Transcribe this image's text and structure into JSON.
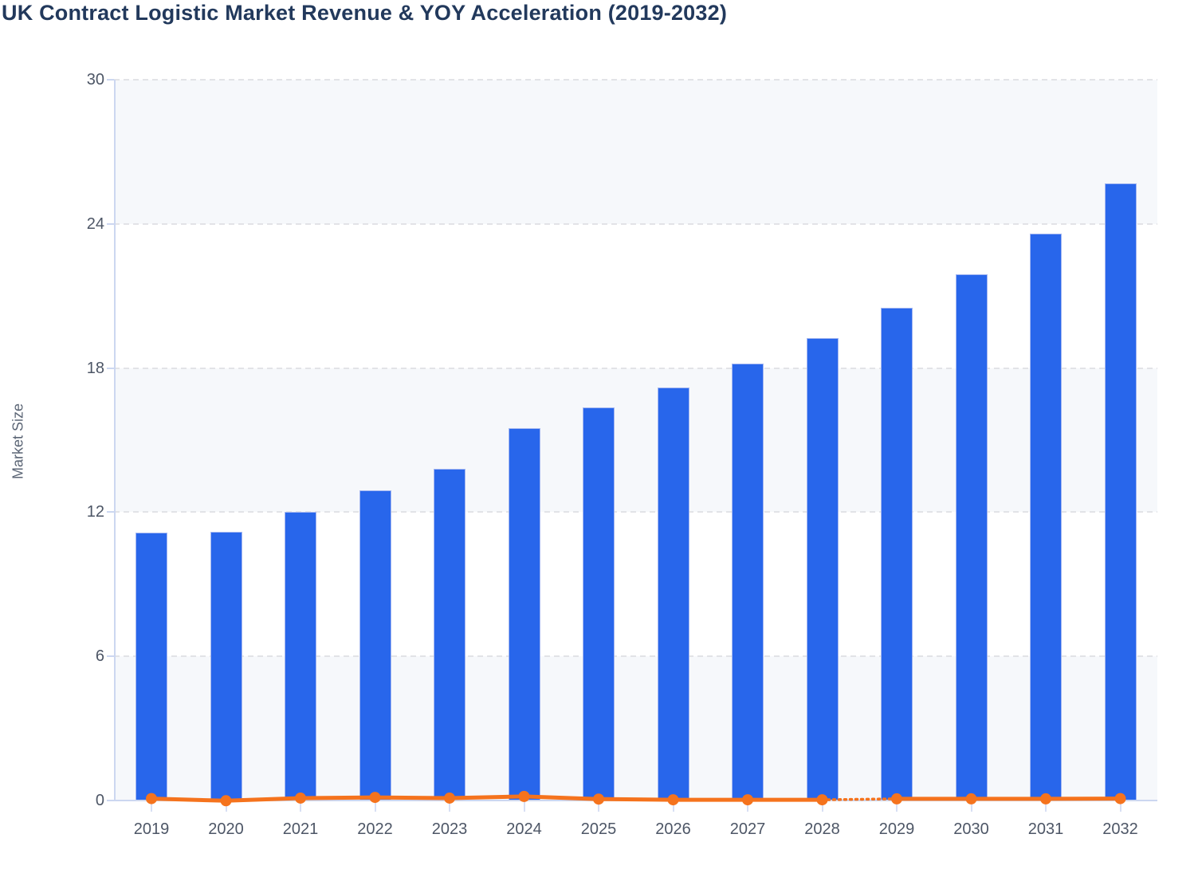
{
  "page": {
    "title": "UK Contract Logistic Market Revenue & YOY Acceleration (2019-2032)"
  },
  "chart_data": {
    "type": "bar",
    "title": "UK Contract Logistic Market Revenue & YOY Acceleration (2019-2032)",
    "categories": [
      "2019",
      "2020",
      "2021",
      "2022",
      "2023",
      "2024",
      "2025",
      "2026",
      "2027",
      "2028",
      "2029",
      "2030",
      "2031",
      "2032"
    ],
    "series": [
      {
        "name": "Market Revenue",
        "type": "bar",
        "values": [
          11.15,
          11.2,
          12.0,
          12.9,
          13.8,
          15.5,
          16.35,
          17.2,
          18.2,
          19.25,
          20.5,
          21.9,
          23.6,
          25.7
        ]
      },
      {
        "name": "YOY Acceleration",
        "type": "line",
        "values": [
          0.08,
          -0.01,
          0.1,
          0.13,
          0.1,
          0.17,
          0.06,
          0.03,
          0.03,
          0.03,
          0.07,
          0.07,
          0.07,
          0.08
        ],
        "dashed_segment_between": [
          "2028",
          "2029"
        ]
      }
    ],
    "xlabel": "",
    "ylabel": "Market Size",
    "ylim": [
      0,
      30
    ],
    "yticks": [
      0,
      6,
      12,
      18,
      24,
      30
    ],
    "grid": "horizontal-dashed",
    "plot_bands": [
      [
        24,
        30
      ],
      [
        12,
        18
      ],
      [
        0,
        6
      ]
    ],
    "legend_position": "none"
  },
  "colors": {
    "bar_fill": "#2866eb",
    "bar_border": "#a4b7f1",
    "line": "#f5731d",
    "marker": "#f5731d",
    "band": "#f6f8fb",
    "gridline": "#e2e3e7",
    "axis": "#ccd7f0",
    "tick": "#d8dff4",
    "title_text": "#22395c",
    "tick_text": "#4d5666",
    "axis_title_text": "#5b6575",
    "background": "#ffffff"
  }
}
